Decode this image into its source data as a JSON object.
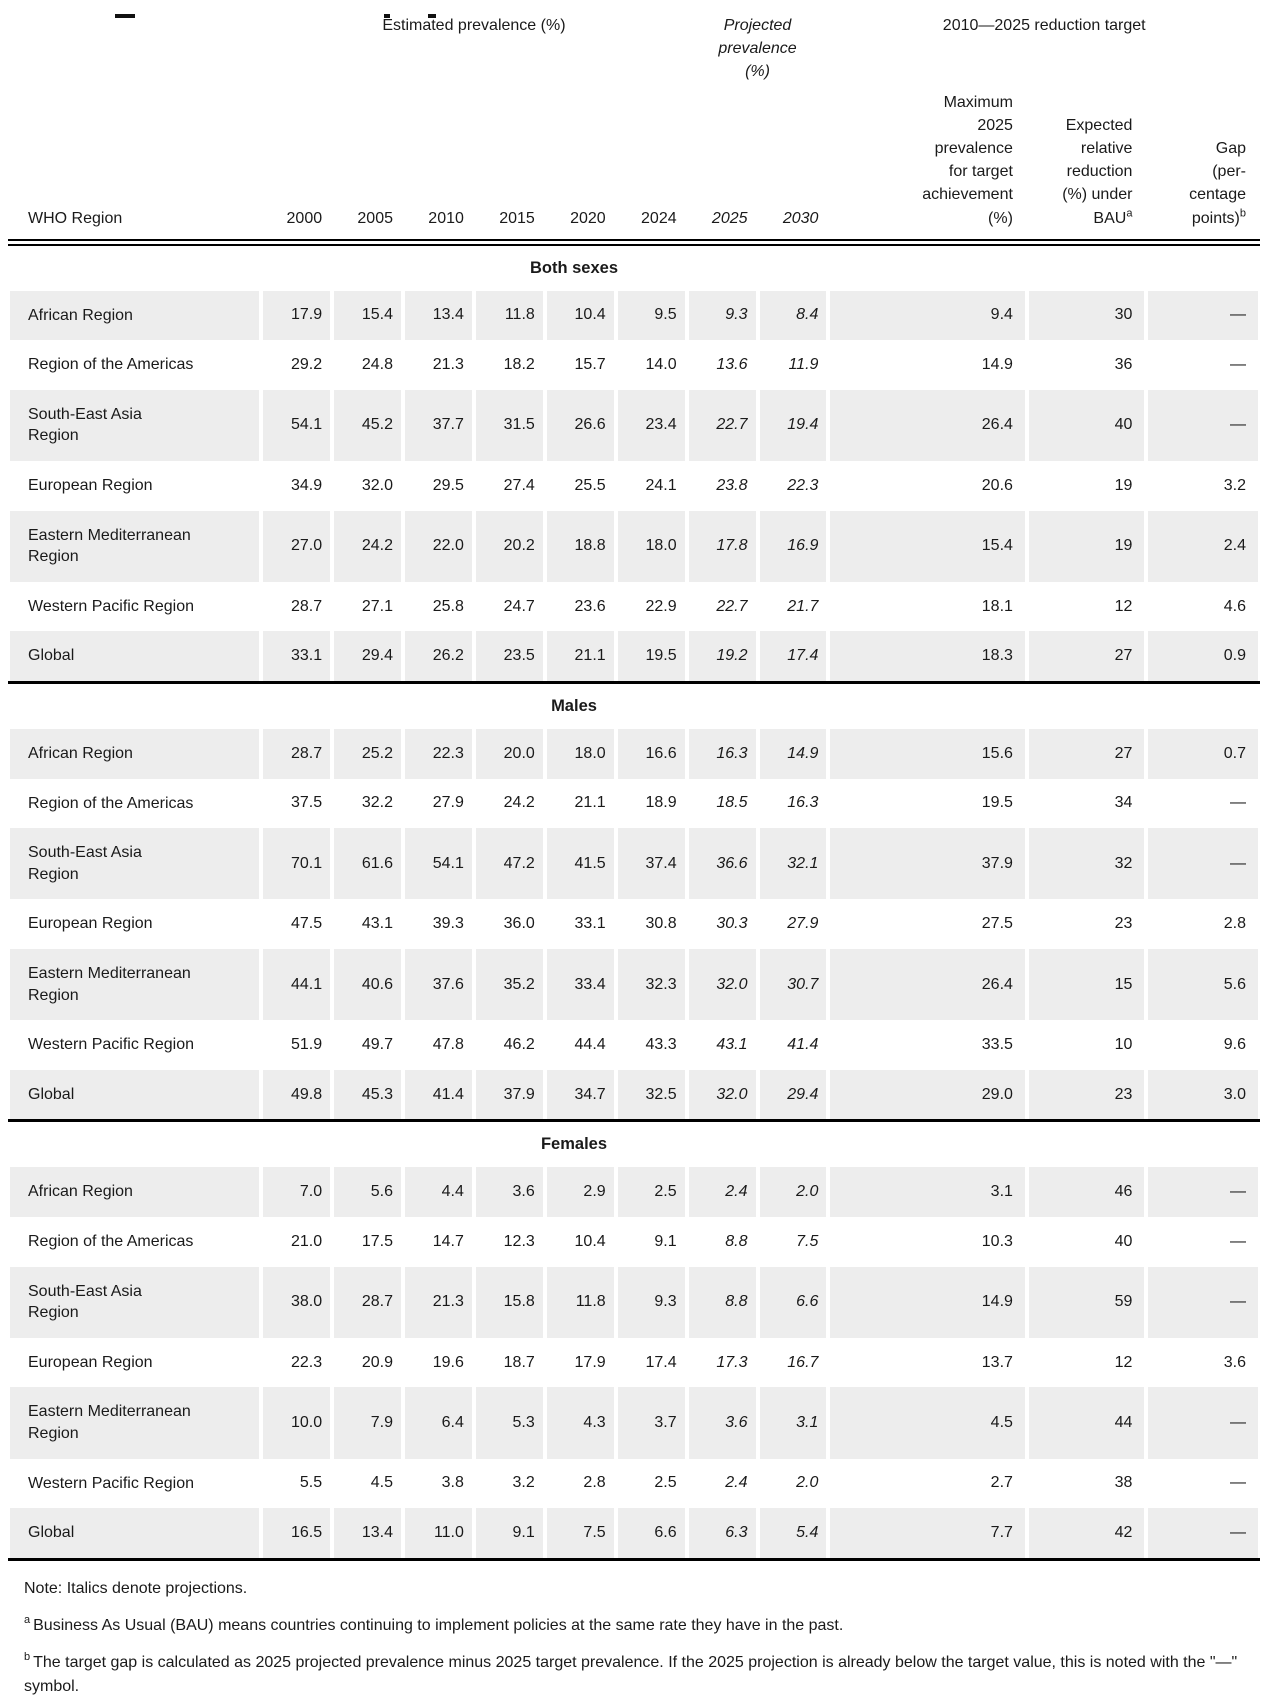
{
  "table": {
    "header": {
      "region_col": "WHO Region",
      "groups": {
        "estimated": "Estimated prevalence (%)",
        "projected": "Projected\nprevalence\n(%)",
        "reduction": "2010—2025 reduction target"
      },
      "years": [
        "2000",
        "2005",
        "2010",
        "2015",
        "2020",
        "2024",
        "2025",
        "2030"
      ],
      "max_col": "Maximum\n2025\nprevalence\nfor target\nachievement\n(%)",
      "bau_col": "Expected\nrelative\nreduction\n(%) under\nBAU",
      "bau_sup": "a",
      "gap_col": "Gap\n(per-\ncentage\npoints)",
      "gap_sup": "b"
    },
    "sections": [
      {
        "title": "Both sexes",
        "rows": [
          {
            "region": "African Region",
            "values": [
              "17.9",
              "15.4",
              "13.4",
              "11.8",
              "10.4",
              "9.5",
              "9.3",
              "8.4",
              "9.4",
              "30",
              "—"
            ]
          },
          {
            "region": "Region of the Americas",
            "values": [
              "29.2",
              "24.8",
              "21.3",
              "18.2",
              "15.7",
              "14.0",
              "13.6",
              "11.9",
              "14.9",
              "36",
              "—"
            ]
          },
          {
            "region": "South-East Asia\nRegion",
            "values": [
              "54.1",
              "45.2",
              "37.7",
              "31.5",
              "26.6",
              "23.4",
              "22.7",
              "19.4",
              "26.4",
              "40",
              "—"
            ]
          },
          {
            "region": "European Region",
            "values": [
              "34.9",
              "32.0",
              "29.5",
              "27.4",
              "25.5",
              "24.1",
              "23.8",
              "22.3",
              "20.6",
              "19",
              "3.2"
            ]
          },
          {
            "region": "Eastern Mediterranean\nRegion",
            "values": [
              "27.0",
              "24.2",
              "22.0",
              "20.2",
              "18.8",
              "18.0",
              "17.8",
              "16.9",
              "15.4",
              "19",
              "2.4"
            ]
          },
          {
            "region": "Western Pacific Region",
            "values": [
              "28.7",
              "27.1",
              "25.8",
              "24.7",
              "23.6",
              "22.9",
              "22.7",
              "21.7",
              "18.1",
              "12",
              "4.6"
            ]
          },
          {
            "region": "Global",
            "values": [
              "33.1",
              "29.4",
              "26.2",
              "23.5",
              "21.1",
              "19.5",
              "19.2",
              "17.4",
              "18.3",
              "27",
              "0.9"
            ]
          }
        ]
      },
      {
        "title": "Males",
        "rows": [
          {
            "region": "African Region",
            "values": [
              "28.7",
              "25.2",
              "22.3",
              "20.0",
              "18.0",
              "16.6",
              "16.3",
              "14.9",
              "15.6",
              "27",
              "0.7"
            ]
          },
          {
            "region": "Region of the Americas",
            "values": [
              "37.5",
              "32.2",
              "27.9",
              "24.2",
              "21.1",
              "18.9",
              "18.5",
              "16.3",
              "19.5",
              "34",
              "—"
            ]
          },
          {
            "region": "South-East Asia\nRegion",
            "values": [
              "70.1",
              "61.6",
              "54.1",
              "47.2",
              "41.5",
              "37.4",
              "36.6",
              "32.1",
              "37.9",
              "32",
              "—"
            ]
          },
          {
            "region": "European Region",
            "values": [
              "47.5",
              "43.1",
              "39.3",
              "36.0",
              "33.1",
              "30.8",
              "30.3",
              "27.9",
              "27.5",
              "23",
              "2.8"
            ]
          },
          {
            "region": "Eastern Mediterranean\nRegion",
            "values": [
              "44.1",
              "40.6",
              "37.6",
              "35.2",
              "33.4",
              "32.3",
              "32.0",
              "30.7",
              "26.4",
              "15",
              "5.6"
            ]
          },
          {
            "region": "Western Pacific Region",
            "values": [
              "51.9",
              "49.7",
              "47.8",
              "46.2",
              "44.4",
              "43.3",
              "43.1",
              "41.4",
              "33.5",
              "10",
              "9.6"
            ]
          },
          {
            "region": "Global",
            "values": [
              "49.8",
              "45.3",
              "41.4",
              "37.9",
              "34.7",
              "32.5",
              "32.0",
              "29.4",
              "29.0",
              "23",
              "3.0"
            ]
          }
        ]
      },
      {
        "title": "Females",
        "rows": [
          {
            "region": "African Region",
            "values": [
              "7.0",
              "5.6",
              "4.4",
              "3.6",
              "2.9",
              "2.5",
              "2.4",
              "2.0",
              "3.1",
              "46",
              "—"
            ]
          },
          {
            "region": "Region of the Americas",
            "values": [
              "21.0",
              "17.5",
              "14.7",
              "12.3",
              "10.4",
              "9.1",
              "8.8",
              "7.5",
              "10.3",
              "40",
              "—"
            ]
          },
          {
            "region": "South-East Asia\nRegion",
            "values": [
              "38.0",
              "28.7",
              "21.3",
              "15.8",
              "11.8",
              "9.3",
              "8.8",
              "6.6",
              "14.9",
              "59",
              "—"
            ]
          },
          {
            "region": "European Region",
            "values": [
              "22.3",
              "20.9",
              "19.6",
              "18.7",
              "17.9",
              "17.4",
              "17.3",
              "16.7",
              "13.7",
              "12",
              "3.6"
            ]
          },
          {
            "region": "Eastern Mediterranean\nRegion",
            "values": [
              "10.0",
              "7.9",
              "6.4",
              "5.3",
              "4.3",
              "3.7",
              "3.6",
              "3.1",
              "4.5",
              "44",
              "—"
            ]
          },
          {
            "region": "Western Pacific Region",
            "values": [
              "5.5",
              "4.5",
              "3.8",
              "3.2",
              "2.8",
              "2.5",
              "2.4",
              "2.0",
              "2.7",
              "38",
              "—"
            ]
          },
          {
            "region": "Global",
            "values": [
              "16.5",
              "13.4",
              "11.0",
              "9.1",
              "7.5",
              "6.6",
              "6.3",
              "5.4",
              "7.7",
              "42",
              "—"
            ]
          }
        ]
      }
    ]
  },
  "footnotes": {
    "note": "Note: Italics denote projections.",
    "a_marker": "a",
    "a_text": "Business As Usual (BAU) means countries continuing to implement policies at the same rate they have in the past.",
    "b_marker": "b",
    "b_text": "The target gap is calculated as 2025 projected prevalence minus 2025 target prevalence. If the 2025 projection is already below the target value, this is noted with the \"—\" symbol."
  }
}
